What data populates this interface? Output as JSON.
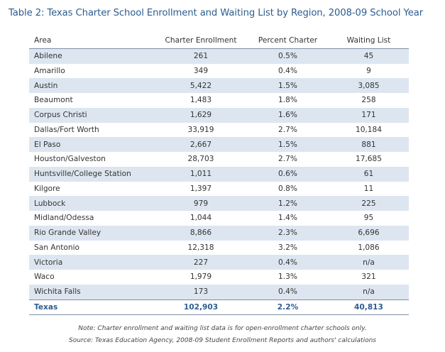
{
  "title": "Table 2:  Texas Charter School Enrollment and Waiting List by Region, 2008-09 School Year",
  "table": {
    "header": [
      "Area",
      "Charter Enrollment",
      "Percent Charter",
      "Waiting List"
    ],
    "rows": [
      [
        "Abilene",
        "261",
        "0.5%",
        "45"
      ],
      [
        "Amarillo",
        "349",
        "0.4%",
        "9"
      ],
      [
        "Austin",
        "5,422",
        "1.5%",
        "3,085"
      ],
      [
        "Beaumont",
        "1,483",
        "1.8%",
        "258"
      ],
      [
        "Corpus Christi",
        "1,629",
        "1.6%",
        "171"
      ],
      [
        "Dallas/Fort Worth",
        "33,919",
        "2.7%",
        "10,184"
      ],
      [
        "El Paso",
        "2,667",
        "1.5%",
        "881"
      ],
      [
        "Houston/Galveston",
        "28,703",
        "2.7%",
        "17,685"
      ],
      [
        "Huntsville/College Station",
        "1,011",
        "0.6%",
        "61"
      ],
      [
        "Kilgore",
        "1,397",
        "0.8%",
        "11"
      ],
      [
        "Lubbock",
        "979",
        "1.2%",
        "225"
      ],
      [
        "Midland/Odessa",
        "1,044",
        "1.4%",
        "95"
      ],
      [
        "Rio Grande Valley",
        "8,866",
        "2.3%",
        "6,696"
      ],
      [
        "San Antonio",
        "12,318",
        "3.2%",
        "1,086"
      ],
      [
        "Victoria",
        "227",
        "0.4%",
        "n/a"
      ],
      [
        "Waco",
        "1,979",
        "1.3%",
        "321"
      ],
      [
        "Wichita Falls",
        "173",
        "0.4%",
        "n/a"
      ]
    ],
    "total": [
      "Texas",
      "102,903",
      "2.2%",
      "40,813"
    ]
  },
  "notes": [
    "Note: Charter enrollment and waiting list data is for open-enrollment charter schools only.",
    "Source: Texas Education Agency, 2008-09 Student Enrollment Reports and authors' calculations"
  ]
}
